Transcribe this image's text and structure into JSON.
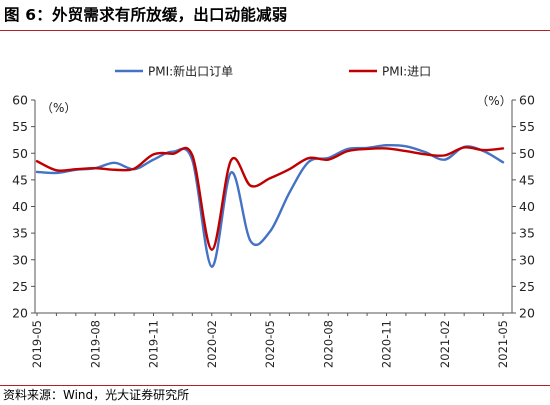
{
  "figure": {
    "title": "图 6：外贸需求有所放缓，出口动能减弱",
    "source": "资料来源：Wind，光大证券研究所",
    "title_rule_color": "#b22222"
  },
  "chart_data": {
    "type": "line",
    "title": "",
    "xlabel": "",
    "ylabel_left": "（%）",
    "ylabel_right": "（%）",
    "ylim": [
      20,
      60
    ],
    "yticks": [
      20,
      25,
      30,
      35,
      40,
      45,
      50,
      55,
      60
    ],
    "x": [
      "2019-05",
      "2019-06",
      "2019-07",
      "2019-08",
      "2019-09",
      "2019-10",
      "2019-11",
      "2019-12",
      "2020-01",
      "2020-02",
      "2020-03",
      "2020-04",
      "2020-05",
      "2020-06",
      "2020-07",
      "2020-08",
      "2020-09",
      "2020-10",
      "2020-11",
      "2020-12",
      "2021-01",
      "2021-02",
      "2021-03",
      "2021-04",
      "2021-05"
    ],
    "xtick_labels": [
      "2019-05",
      "2019-08",
      "2019-11",
      "2020-02",
      "2020-05",
      "2020-08",
      "2020-11",
      "2021-02",
      "2021-05"
    ],
    "grid": false,
    "legend_position": "top-center",
    "series": [
      {
        "name": "PMI:新出口订单",
        "color": "#4472c4",
        "values": [
          46.5,
          46.3,
          46.9,
          47.2,
          48.2,
          47.0,
          48.8,
          50.3,
          48.7,
          28.7,
          46.4,
          33.5,
          35.3,
          42.6,
          48.4,
          49.1,
          50.8,
          51.0,
          51.5,
          51.3,
          50.2,
          48.8,
          51.2,
          50.4,
          48.3
        ]
      },
      {
        "name": "PMI:进口",
        "color": "#c00000",
        "values": [
          48.5,
          46.8,
          47.0,
          47.2,
          46.9,
          47.1,
          49.8,
          49.9,
          49.6,
          31.9,
          48.7,
          43.9,
          45.3,
          47.0,
          49.1,
          48.8,
          50.4,
          50.8,
          50.9,
          50.4,
          49.8,
          49.6,
          51.1,
          50.6,
          50.9
        ]
      }
    ]
  }
}
